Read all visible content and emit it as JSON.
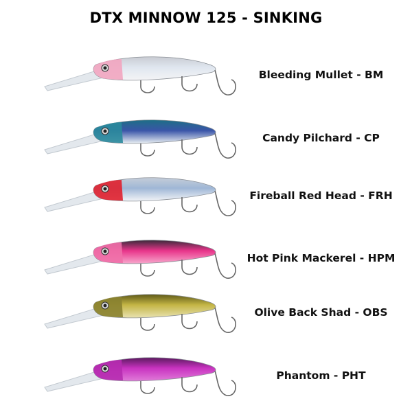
{
  "title": "DTX MINNOW 125 - SINKING",
  "lures": [
    {
      "label": "Bleeding Mullet - BM",
      "back": "#c9ccd3",
      "belly": "#f4f4f6",
      "head": "#f2a5c0",
      "stripe": "#dfe6ef"
    },
    {
      "label": "Candy Pilchard - CP",
      "back": "#1d6f86",
      "belly": "#e8eef2",
      "head": "#2a8a9c",
      "stripe": "#3a55a8"
    },
    {
      "label": "Fireball Red Head - FRH",
      "back": "#c5cdd8",
      "belly": "#f2f4f7",
      "head": "#e0202e",
      "stripe": "#9fb7d6"
    },
    {
      "label": "Hot Pink Mackerel - HPM",
      "back": "#3a2a3a",
      "belly": "#f7a6cc",
      "head": "#f070a8",
      "stripe": "#e8348a"
    },
    {
      "label": "Olive Back Shad - OBS",
      "back": "#5f5a18",
      "belly": "#e8e2b0",
      "head": "#8a8230",
      "stripe": "#c4b545"
    },
    {
      "label": "Phantom - PHT",
      "back": "#5a1a5e",
      "belly": "#e07ad8",
      "head": "#b62cb0",
      "stripe": "#c832c0"
    }
  ]
}
